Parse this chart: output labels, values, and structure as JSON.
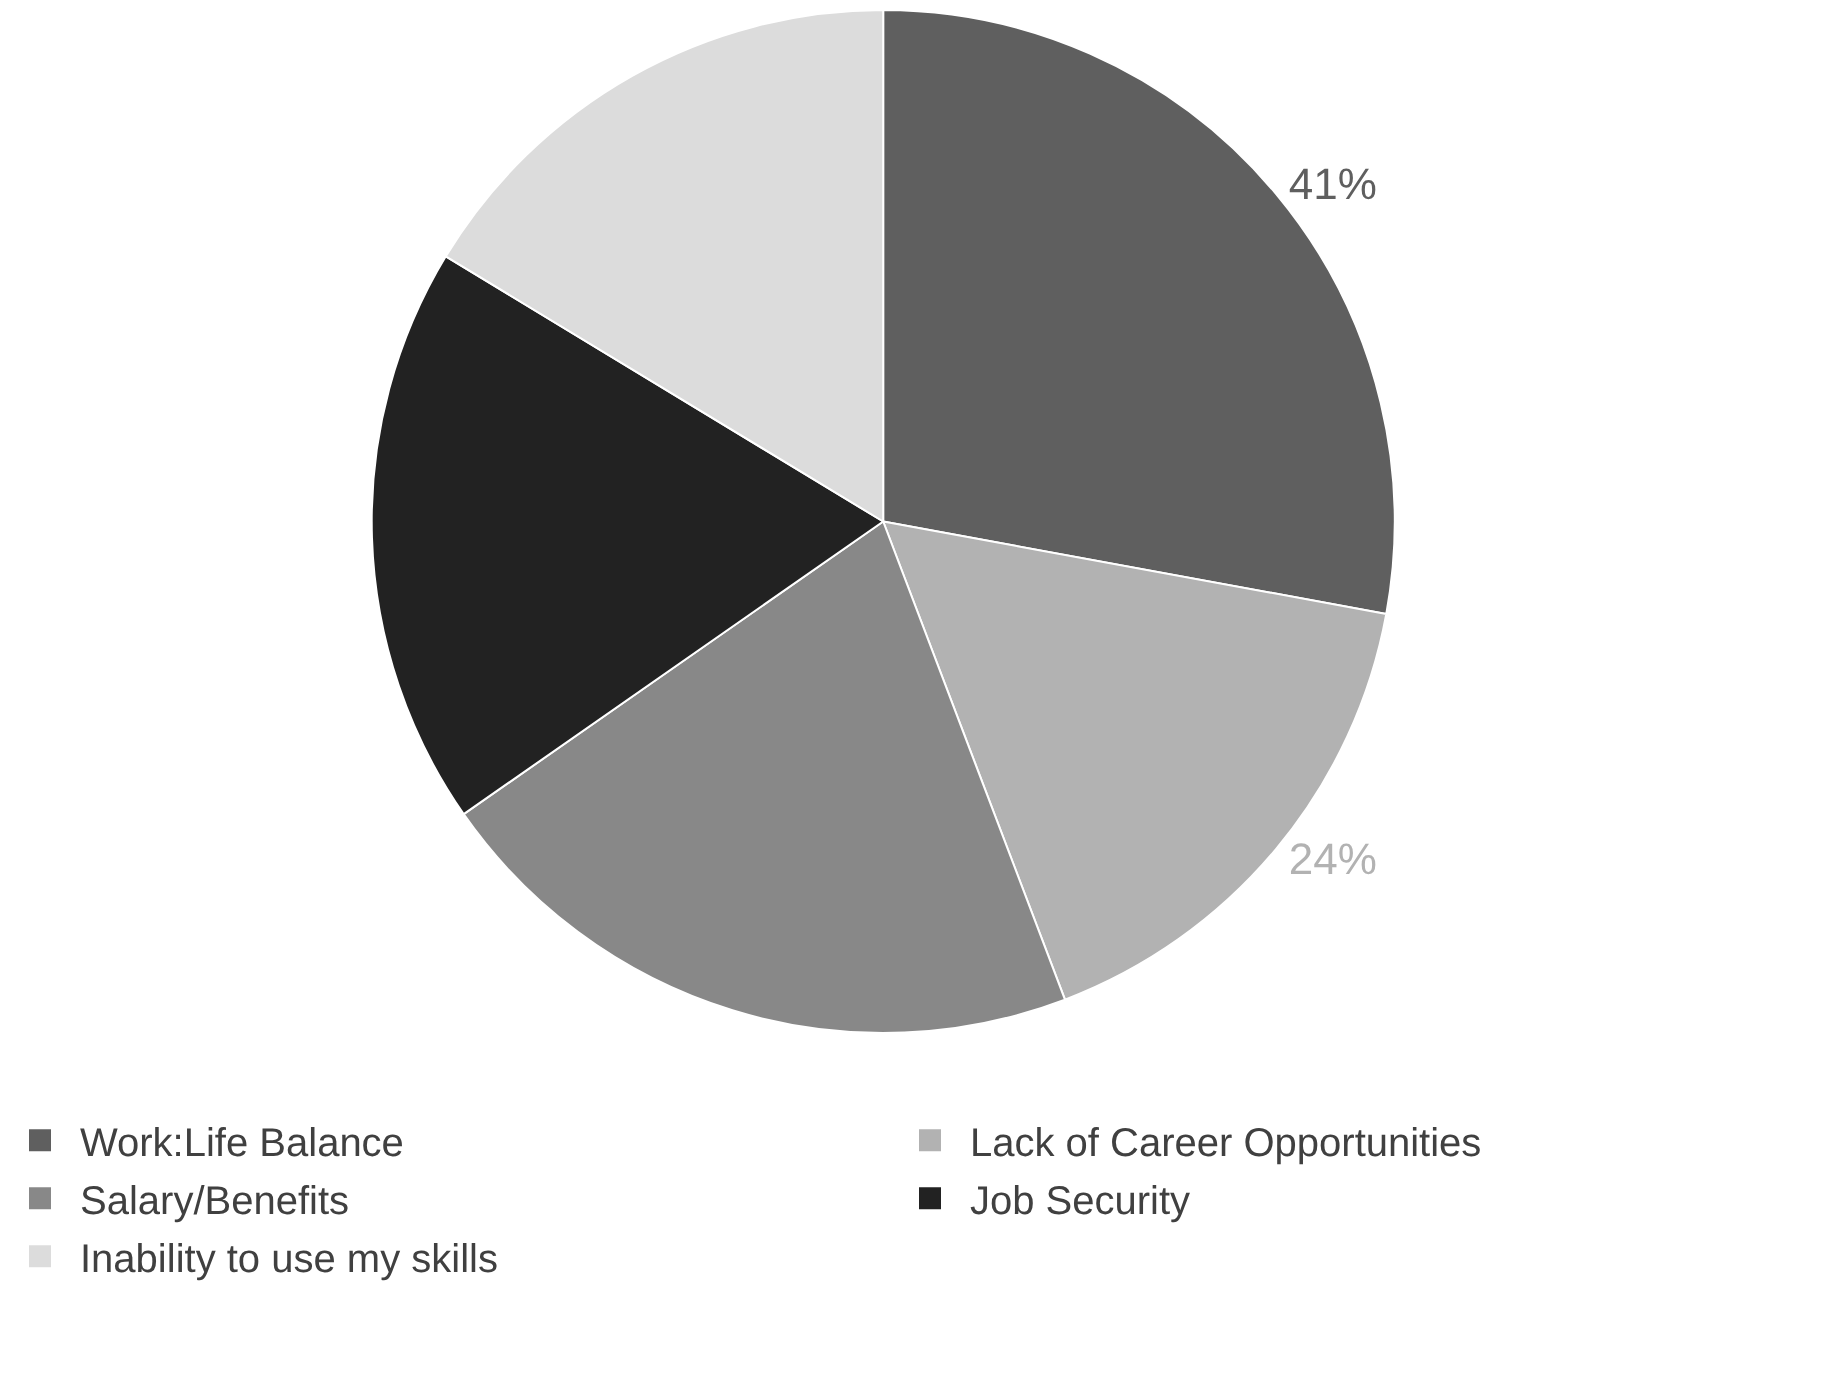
{
  "chart_data": {
    "type": "pie",
    "categories": [
      "Work:Life Balance",
      "Lack of Career Opportunities",
      "Salary/Benefits",
      "Job Security",
      "Inability to use my skills"
    ],
    "values": [
      41,
      24,
      31,
      27,
      24
    ],
    "colors": [
      "#5f5f5f",
      "#b2b2b2",
      "#888888",
      "#222222",
      "#dcdcdc"
    ],
    "value_labels": [
      "41%",
      "24%",
      null,
      null,
      null
    ],
    "legend": "bottom"
  }
}
